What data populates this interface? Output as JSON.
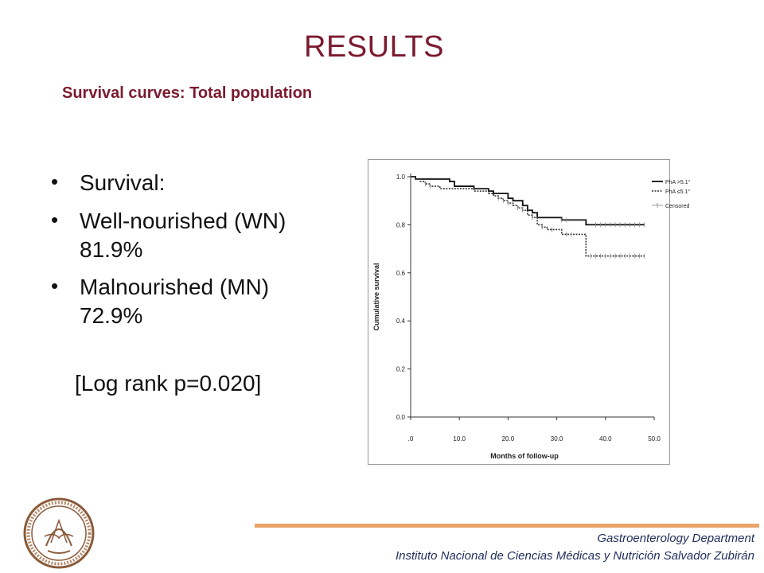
{
  "slide": {
    "title": "RESULTS",
    "subtitle": "Survival curves: Total population"
  },
  "bullets": [
    {
      "text": "Survival:",
      "value": ""
    },
    {
      "text": "Well-nourished (WN)",
      "value": "81.9%"
    },
    {
      "text": "Malnourished (MN)",
      "value": "72.9%"
    }
  ],
  "logrank": "[Log rank p=0.020]",
  "footer": {
    "department": "Gastroenterology Department",
    "institution": "Instituto Nacional de Ciencias Médicas y Nutrición Salvador Zubirán"
  },
  "colors": {
    "title": "#7b1a2e",
    "accent_line": "#e8a36a",
    "footer_text": "#1f2d5a"
  },
  "chart_data": {
    "type": "line",
    "subtype": "kaplan-meier-step",
    "xlabel": "Months of follow-up",
    "ylabel": "Cumulative survival",
    "xlim": [
      0,
      50
    ],
    "ylim": [
      0,
      1.0
    ],
    "xticks": [
      0,
      10,
      20,
      30,
      40,
      50
    ],
    "xtick_labels": [
      ".0",
      "10.0",
      "20.0",
      "30.0",
      "40.0",
      "50.0"
    ],
    "yticks": [
      0,
      0.2,
      0.4,
      0.6,
      0.8,
      1.0
    ],
    "ytick_labels": [
      "0.0",
      "0.2",
      "0.4",
      "0.6",
      "0.8",
      "1.0"
    ],
    "grid": false,
    "legend_position": "top-right",
    "legend": [
      "PhA >5.1°",
      "PhA ≤5.1°",
      "Censored"
    ],
    "series": [
      {
        "name": "PhA >5.1°",
        "style": "solid",
        "color": "#111111",
        "x": [
          0,
          1,
          7,
          8,
          9,
          12,
          13,
          15,
          16,
          17,
          19,
          20,
          21,
          23,
          24,
          25,
          26,
          31,
          36,
          48
        ],
        "y": [
          1.0,
          0.99,
          0.99,
          0.98,
          0.96,
          0.96,
          0.95,
          0.95,
          0.94,
          0.93,
          0.93,
          0.91,
          0.9,
          0.88,
          0.86,
          0.85,
          0.83,
          0.82,
          0.8,
          0.8
        ],
        "censored_x": [
          31,
          32,
          38,
          39,
          40,
          41,
          42,
          43,
          44,
          45,
          46,
          47,
          48
        ]
      },
      {
        "name": "PhA ≤5.1°",
        "style": "dotted",
        "color": "#333333",
        "x": [
          0,
          1,
          2,
          3,
          4,
          5,
          6,
          11,
          13,
          16,
          17,
          18,
          19,
          20,
          21,
          22,
          23,
          24,
          25,
          26,
          27,
          28,
          29,
          31,
          36,
          48
        ],
        "y": [
          1.0,
          0.99,
          0.98,
          0.97,
          0.96,
          0.96,
          0.95,
          0.95,
          0.94,
          0.93,
          0.92,
          0.91,
          0.9,
          0.89,
          0.88,
          0.87,
          0.86,
          0.84,
          0.83,
          0.8,
          0.79,
          0.78,
          0.78,
          0.76,
          0.67,
          0.67
        ],
        "censored_x": [
          3,
          4,
          18,
          19,
          20,
          22,
          23,
          25,
          27,
          29,
          32,
          33,
          37,
          38,
          39,
          40,
          41,
          42,
          43,
          44,
          45,
          46,
          47,
          48
        ]
      }
    ]
  }
}
